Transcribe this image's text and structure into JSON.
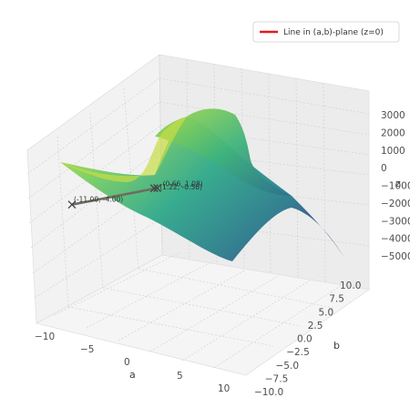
{
  "chart_data": {
    "type": "surface3d",
    "title": "",
    "axes": {
      "a": {
        "label": "a",
        "range": [
          -13,
          11
        ],
        "ticks": [
          "−10",
          "−5",
          "0",
          "5",
          "10"
        ]
      },
      "b": {
        "label": "b",
        "range": [
          -11,
          11
        ],
        "ticks": [
          "−10.0",
          "−7.5",
          "−5.0",
          "−2.5",
          "0.0",
          "2.5",
          "5.0",
          "7.5",
          "10.0"
        ]
      },
      "z": {
        "label": "z",
        "range": [
          -5400,
          3500
        ],
        "ticks": [
          "3000",
          "2000",
          "1000",
          "0",
          "−1000",
          "−2000",
          "−3000",
          "−4000",
          "−5000"
        ]
      }
    },
    "grid": true,
    "colormap": "viridis",
    "legend": {
      "placement": "top-right",
      "entries": [
        {
          "label": "Line in (a,b)-plane (z=0)",
          "color": "#e41a1c"
        }
      ]
    },
    "surface_description": "saddle surface",
    "line": {
      "name": "Line in (a,b)-plane (z=0)",
      "points": [
        [
          -11.0,
          -4.0
        ],
        [
          0.66,
          1.08
        ],
        [
          1.22,
          -0.56
        ]
      ]
    },
    "points": [
      {
        "a": -11.0,
        "b": -4.0,
        "label": "(-11.00, -4.00)"
      },
      {
        "a": 0.66,
        "b": 1.08,
        "label": "(0.66, 1.08)"
      },
      {
        "a": 1.22,
        "b": -0.56,
        "label": "(1.22, -0.56)"
      }
    ]
  }
}
